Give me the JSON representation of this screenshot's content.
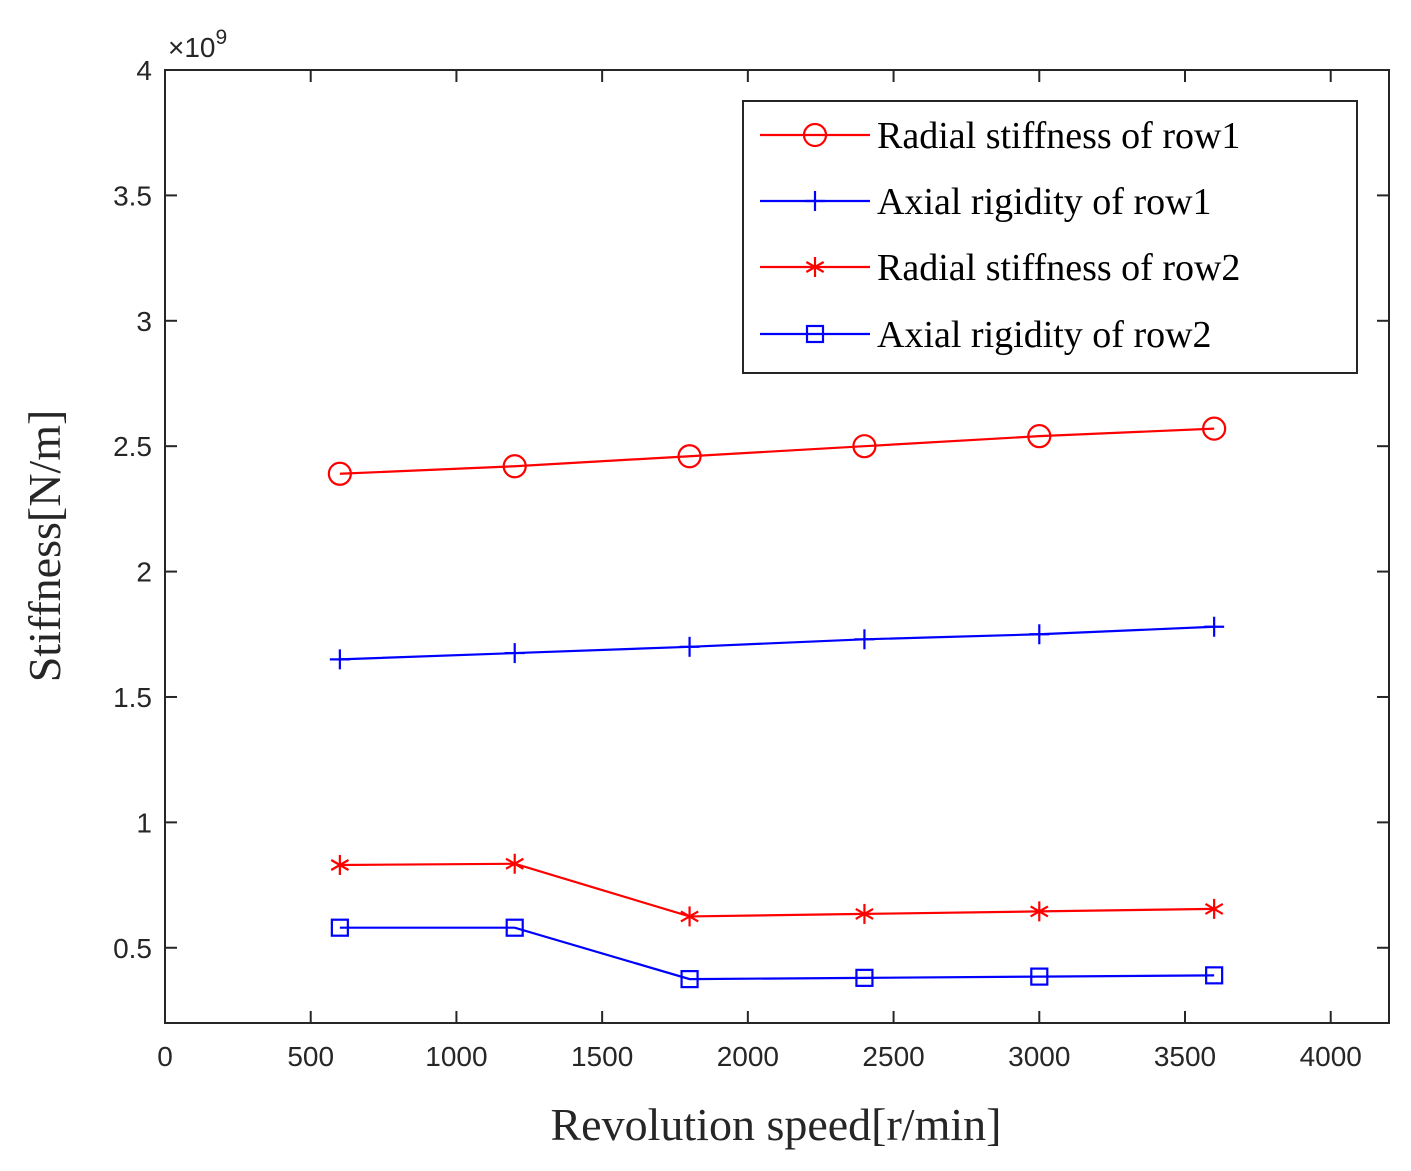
{
  "chart_data": {
    "type": "line",
    "title": "",
    "xlabel": "Revolution speed[r/min]",
    "ylabel": "Stiffness[N/m]",
    "y_exponent_label": "×10",
    "y_exponent_power": "9",
    "xlim": [
      0,
      4200
    ],
    "ylim": [
      0.2,
      4
    ],
    "xticks": [
      0,
      500,
      1000,
      1500,
      2000,
      2500,
      3000,
      3500,
      4000
    ],
    "xtick_labels": [
      "0",
      "500",
      "1000",
      "1500",
      "2000",
      "2500",
      "3000",
      "3500",
      "4000"
    ],
    "yticks": [
      0.5,
      1,
      1.5,
      2,
      2.5,
      3,
      3.5,
      4
    ],
    "ytick_labels": [
      "0.5",
      "1",
      "1.5",
      "2",
      "2.5",
      "3",
      "3.5",
      "4"
    ],
    "grid": false,
    "legend_position": "top-right",
    "x": [
      600,
      1200,
      1800,
      2400,
      3000,
      3600
    ],
    "series": [
      {
        "name": "Radial stiffness of row1",
        "marker": "circle",
        "color": "#ff0000",
        "values": [
          2.39,
          2.42,
          2.46,
          2.5,
          2.54,
          2.57
        ]
      },
      {
        "name": "Axial rigidity of row1",
        "marker": "plus",
        "color": "#0000ff",
        "values": [
          1.65,
          1.675,
          1.7,
          1.73,
          1.75,
          1.78
        ]
      },
      {
        "name": "Radial stiffness of row2",
        "marker": "asterisk",
        "color": "#ff0000",
        "values": [
          0.83,
          0.835,
          0.625,
          0.635,
          0.645,
          0.655
        ]
      },
      {
        "name": "Axial rigidity of row2",
        "marker": "square",
        "color": "#0000ff",
        "values": [
          0.58,
          0.58,
          0.375,
          0.38,
          0.385,
          0.39
        ]
      }
    ]
  }
}
